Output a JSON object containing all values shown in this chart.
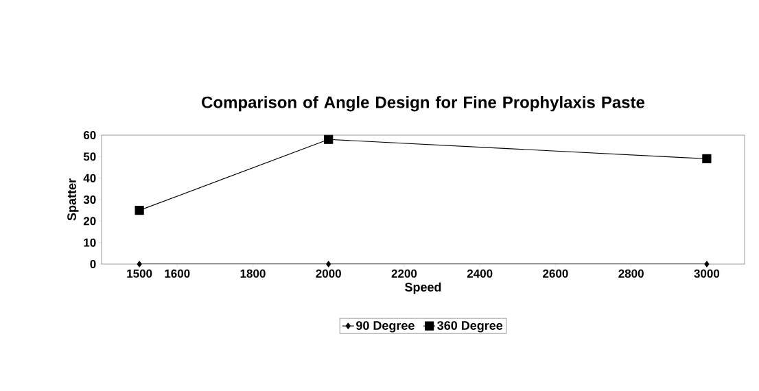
{
  "chart_data": {
    "type": "line",
    "title": "Comparison of Angle Design for Fine Prophylaxis Paste",
    "xlabel": "Speed",
    "ylabel": "Spatter",
    "x": [
      1500,
      2000,
      3000
    ],
    "series": [
      {
        "name": "90 Degree",
        "color": "#000000",
        "marker": "diamond",
        "values": [
          0,
          0,
          0
        ]
      },
      {
        "name": "360 Degree",
        "color": "#000000",
        "marker": "square",
        "values": [
          25,
          58,
          49
        ]
      }
    ],
    "xlim": [
      1400,
      3100
    ],
    "xticks": [
      1500,
      1600,
      1800,
      2000,
      2200,
      2400,
      2600,
      2800,
      3000
    ],
    "ylim": [
      0,
      60
    ],
    "yticks": [
      0,
      10,
      20,
      30,
      40,
      50,
      60
    ],
    "grid": false,
    "legend": "bottom",
    "line_style": "solid"
  }
}
